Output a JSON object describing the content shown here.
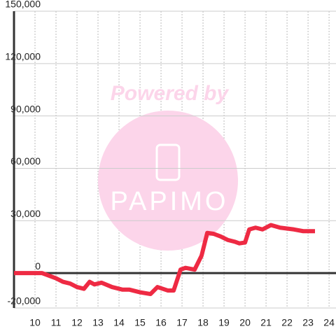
{
  "chart_data": {
    "type": "line",
    "watermark": {
      "top": "Powered by",
      "logo": "PAPIMO"
    },
    "x": [
      9,
      10.33,
      11,
      11.33,
      11.67,
      12,
      12.33,
      12.6,
      12.83,
      13.17,
      13.67,
      14.17,
      14.5,
      15,
      15.5,
      15.83,
      16.33,
      16.6,
      16.93,
      17.17,
      17.6,
      17.93,
      18.2,
      18.5,
      18.83,
      19.17,
      19.5,
      19.73,
      20,
      20.2,
      20.5,
      20.83,
      21.23,
      21.67,
      22.33,
      22.77,
      23.33
    ],
    "series": [
      {
        "color": "#ee2a43",
        "values": [
          0,
          0,
          -3000,
          -5000,
          -6000,
          -8000,
          -9000,
          -5000,
          -6500,
          -5500,
          -8000,
          -9500,
          -9500,
          -11000,
          -12000,
          -8000,
          -10000,
          -10000,
          2000,
          3000,
          2000,
          10000,
          23000,
          22500,
          21000,
          19000,
          18000,
          17000,
          17500,
          25000,
          26000,
          25000,
          27500,
          26000,
          25000,
          24000,
          24000
        ]
      }
    ],
    "xlim": [
      9,
      24.33
    ],
    "ylim": [
      -20000,
      150000
    ],
    "xticks": [
      10,
      11,
      12,
      13,
      14,
      15,
      16,
      17,
      18,
      19,
      20,
      21,
      22,
      23,
      24
    ],
    "yticks": [
      {
        "value": -20000,
        "label": "-20,000"
      },
      0,
      {
        "value": 30000,
        "label": "30,000"
      },
      {
        "value": 60000,
        "label": "60,000"
      },
      {
        "value": 90000,
        "label": "90,000"
      },
      {
        "value": 120000,
        "label": "120,000"
      },
      {
        "value": 150000,
        "label": "150,000"
      }
    ],
    "grid": true
  }
}
